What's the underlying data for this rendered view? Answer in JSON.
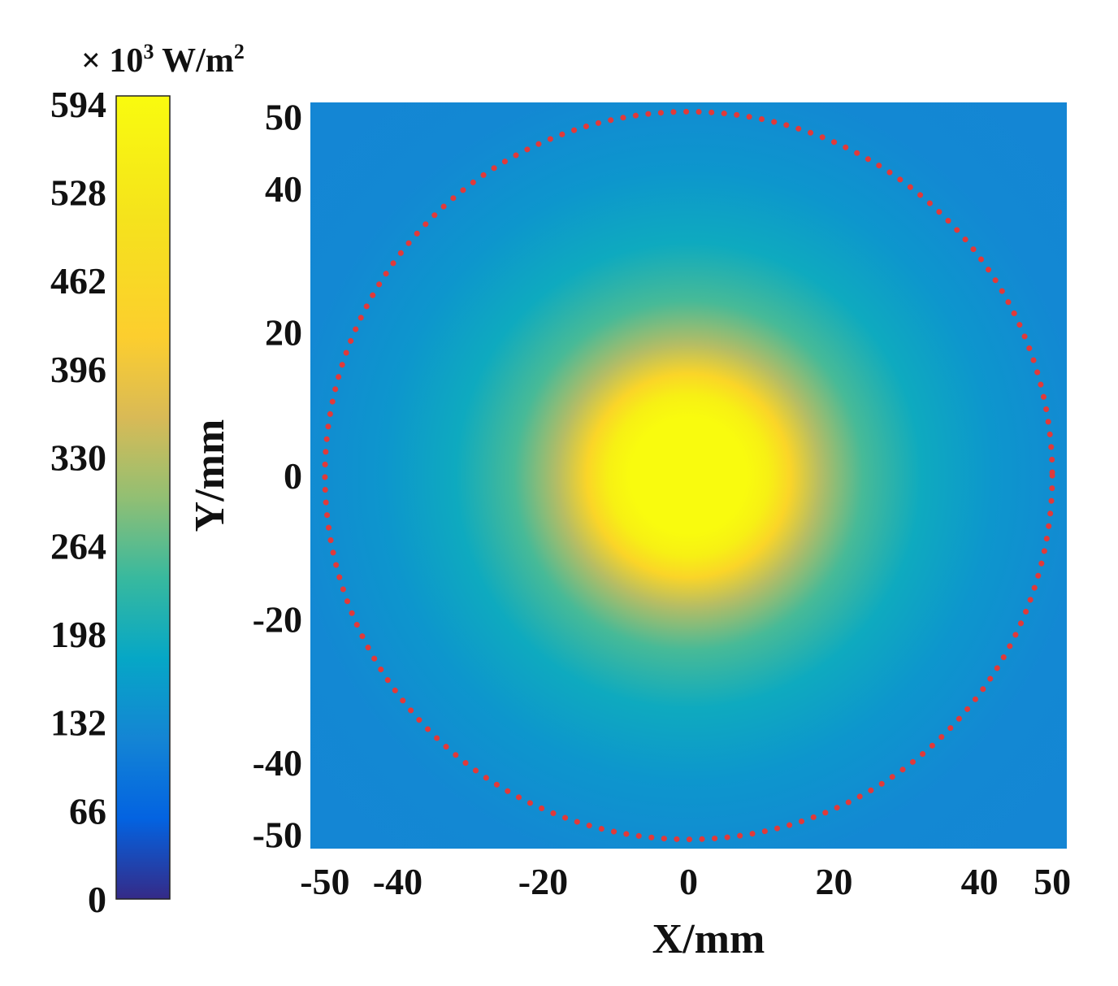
{
  "chart_data": {
    "type": "heatmap",
    "title": "",
    "xlabel": "X/mm",
    "ylabel": "Y/mm",
    "xlim": [
      -52,
      52
    ],
    "ylim": [
      -52,
      52
    ],
    "xticks": [
      -50,
      -40,
      -20,
      0,
      20,
      40,
      50
    ],
    "yticks": [
      50,
      40,
      20,
      0,
      -20,
      -40,
      -50
    ],
    "colorbar": {
      "unit_prefix": "× 10",
      "unit_exponent": "3",
      "unit_text": " W/m",
      "unit_exponent2": "2",
      "range": [
        0,
        600
      ],
      "ticks": [
        0,
        66,
        132,
        198,
        264,
        330,
        396,
        462,
        528,
        594
      ],
      "colormap": "parula"
    },
    "field": {
      "shape": "radial",
      "center": [
        0,
        0
      ],
      "peak_value": 600,
      "background_value": 120,
      "profile": [
        {
          "r": 0,
          "value": 600
        },
        {
          "r": 8,
          "value": 600
        },
        {
          "r": 11,
          "value": 560
        },
        {
          "r": 14,
          "value": 450
        },
        {
          "r": 18,
          "value": 330
        },
        {
          "r": 24,
          "value": 250
        },
        {
          "r": 32,
          "value": 190
        },
        {
          "r": 42,
          "value": 150
        },
        {
          "r": 55,
          "value": 125
        },
        {
          "r": 75,
          "value": 120
        }
      ]
    },
    "annotations": [
      {
        "type": "dotted-circle",
        "center": [
          0,
          0
        ],
        "radius": 50,
        "color": "#e03a3a"
      }
    ]
  }
}
